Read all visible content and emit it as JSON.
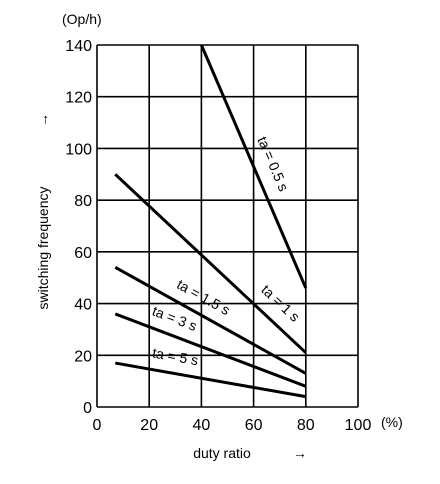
{
  "chart_data": {
    "type": "line",
    "title": "",
    "xlabel": "duty ratio",
    "ylabel": "switching frequency",
    "x_unit": "(%)",
    "y_unit": "(Op/h)",
    "xlim": [
      0,
      100
    ],
    "ylim": [
      0,
      140
    ],
    "x_ticks": [
      0,
      20,
      40,
      60,
      80,
      100
    ],
    "y_ticks": [
      0,
      20,
      40,
      60,
      80,
      100,
      120,
      140
    ],
    "grid": true,
    "axis_arrows": {
      "x": "→",
      "y": "↑"
    },
    "series": [
      {
        "name": "ta = 0.5 s",
        "x": [
          40,
          80
        ],
        "y": [
          140,
          46
        ]
      },
      {
        "name": "ta = 1 s",
        "x": [
          7,
          80
        ],
        "y": [
          90,
          21
        ]
      },
      {
        "name": "ta = 1.5 s",
        "x": [
          7,
          80
        ],
        "y": [
          54,
          13
        ]
      },
      {
        "name": "ta = 3 s",
        "x": [
          7,
          80
        ],
        "y": [
          36,
          8
        ]
      },
      {
        "name": "ta = 5 s",
        "x": [
          7,
          80
        ],
        "y": [
          17,
          4
        ]
      }
    ]
  }
}
